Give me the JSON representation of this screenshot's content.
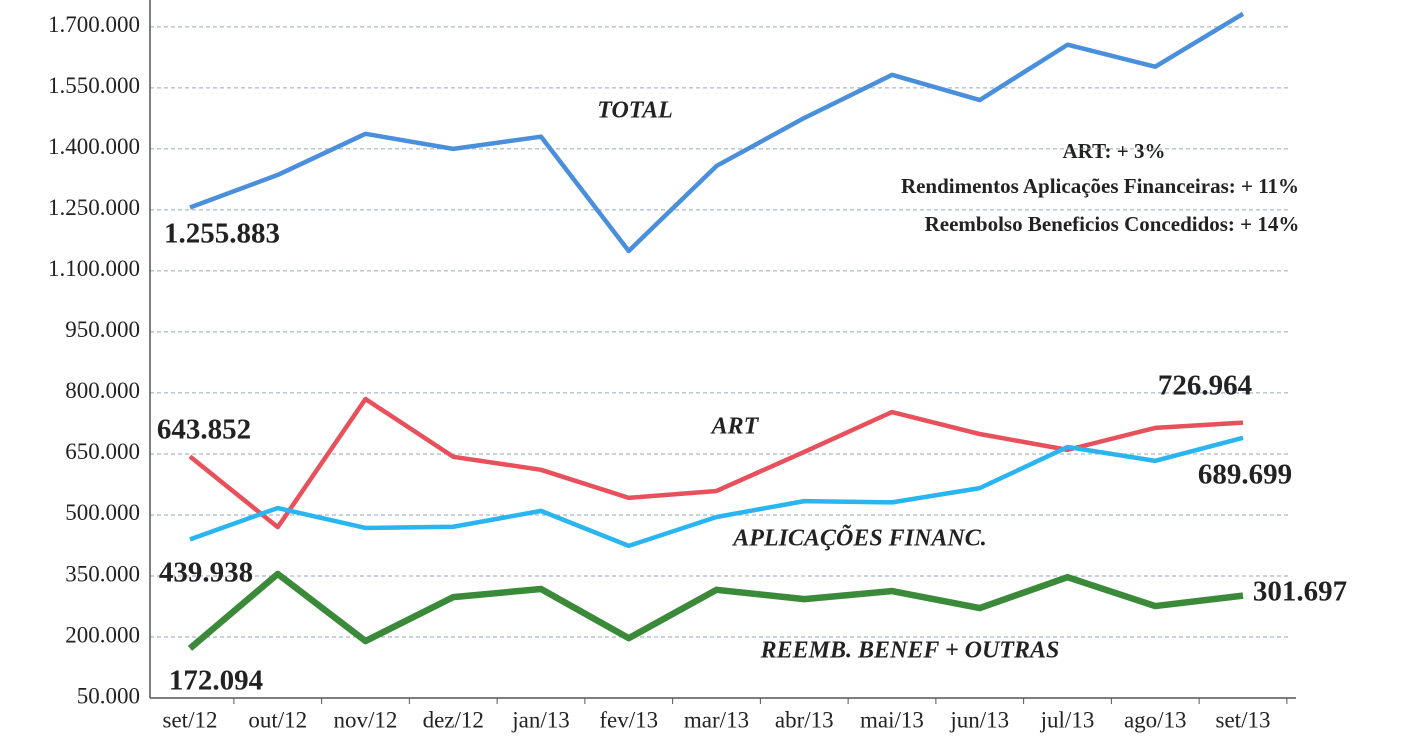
{
  "chart_data": {
    "type": "line",
    "categories": [
      "set/12",
      "out/12",
      "nov/12",
      "dez/12",
      "jan/13",
      "fev/13",
      "mar/13",
      "abr/13",
      "mai/13",
      "jun/13",
      "jul/13",
      "ago/13",
      "set/13"
    ],
    "series": [
      {
        "name": "TOTAL",
        "color": "#4a8fdc",
        "values": [
          1255883,
          1336000,
          1437000,
          1400000,
          1430000,
          1149000,
          1358000,
          1476000,
          1582000,
          1520000,
          1656000,
          1602000,
          1732000
        ],
        "value_labels": [
          "1.255.883",
          null,
          null,
          null,
          null,
          null,
          null,
          null,
          null,
          null,
          null,
          null,
          null
        ]
      },
      {
        "name": "ART",
        "color": "#e8505b",
        "values": [
          643852,
          470000,
          785000,
          643000,
          611000,
          542000,
          559000,
          655000,
          753000,
          699000,
          660000,
          714000,
          726964
        ],
        "value_labels": [
          "643.852",
          null,
          null,
          null,
          null,
          null,
          null,
          null,
          null,
          null,
          null,
          null,
          "726.964"
        ]
      },
      {
        "name": "APLICAÇÕES FINANC.",
        "color": "#29b5ef",
        "values": [
          439938,
          517000,
          468000,
          471000,
          510000,
          424000,
          495000,
          534000,
          531000,
          566000,
          667000,
          633000,
          689699
        ],
        "value_labels": [
          "439.938",
          null,
          null,
          null,
          null,
          null,
          null,
          null,
          null,
          null,
          null,
          null,
          "689.699"
        ]
      },
      {
        "name": "REEMB. BENEF + OUTRAS",
        "color": "#3a8a3a",
        "values": [
          172094,
          355000,
          190000,
          298000,
          318000,
          197000,
          316000,
          293000,
          313000,
          271000,
          347000,
          276000,
          301697
        ],
        "value_labels": [
          "172.094",
          null,
          null,
          null,
          null,
          null,
          null,
          null,
          null,
          null,
          null,
          null,
          "301.697"
        ]
      }
    ],
    "annotations": [
      "ART:  + 3%",
      "Rendimentos Aplicações Financeiras: + 11%",
      "Reembolso Beneficios Concedidos: + 14%"
    ],
    "ylim": [
      50000,
      1766000
    ],
    "yticks": [
      {
        "value": 50000,
        "label": "50.000"
      },
      {
        "value": 200000,
        "label": "200.000"
      },
      {
        "value": 350000,
        "label": "350.000"
      },
      {
        "value": 500000,
        "label": "500.000"
      },
      {
        "value": 650000,
        "label": "650.000"
      },
      {
        "value": 800000,
        "label": "800.000"
      },
      {
        "value": 950000,
        "label": "950.000"
      },
      {
        "value": 1100000,
        "label": "1.100.000"
      },
      {
        "value": 1250000,
        "label": "1.250.000"
      },
      {
        "value": 1400000,
        "label": "1.400.000"
      },
      {
        "value": 1550000,
        "label": "1.550.000"
      },
      {
        "value": 1700000,
        "label": "1.700.000"
      }
    ],
    "grid": true
  }
}
